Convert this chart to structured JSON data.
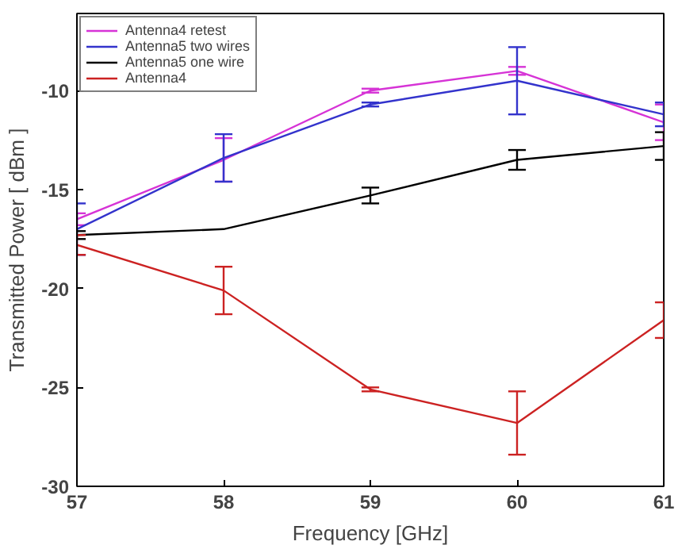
{
  "chart_data": {
    "type": "line",
    "xlabel": "Frequency [GHz]",
    "ylabel": "Transmitted Power [ dBm ]",
    "x": [
      57,
      58,
      59,
      60,
      61
    ],
    "series": [
      {
        "name": "Antenna4 retest",
        "color": "#d633d6",
        "values": [
          -16.5,
          -13.5,
          -10.0,
          -9.0,
          -11.6
        ],
        "errors": [
          0.3,
          1.1,
          0.1,
          0.2,
          0.9
        ]
      },
      {
        "name": "Antenna5 two wires",
        "color": "#3333cc",
        "values": [
          -17.0,
          -13.4,
          -10.7,
          -9.5,
          -11.2
        ],
        "errors": [
          1.3,
          1.2,
          0.1,
          1.7,
          0.6
        ]
      },
      {
        "name": "Antenna5 one wire",
        "color": "#000000",
        "values": [
          -17.3,
          -17.0,
          -15.3,
          -13.5,
          -12.8
        ],
        "errors": [
          0.2,
          null,
          0.4,
          0.5,
          0.7
        ]
      },
      {
        "name": "Antenna4",
        "color": "#cc2222",
        "values": [
          -17.8,
          -20.1,
          -25.1,
          -26.8,
          -21.6
        ],
        "errors": [
          0.5,
          1.2,
          0.1,
          1.6,
          0.9
        ]
      }
    ],
    "xlim": [
      57,
      61
    ],
    "ylim": [
      -30,
      -6.1
    ],
    "xticks": [
      57,
      58,
      59,
      60,
      61
    ],
    "yticks": [
      -30,
      -25,
      -20,
      -15,
      -10
    ],
    "grid": false,
    "legend": "top left",
    "marker": "none",
    "line_style": "solid"
  }
}
